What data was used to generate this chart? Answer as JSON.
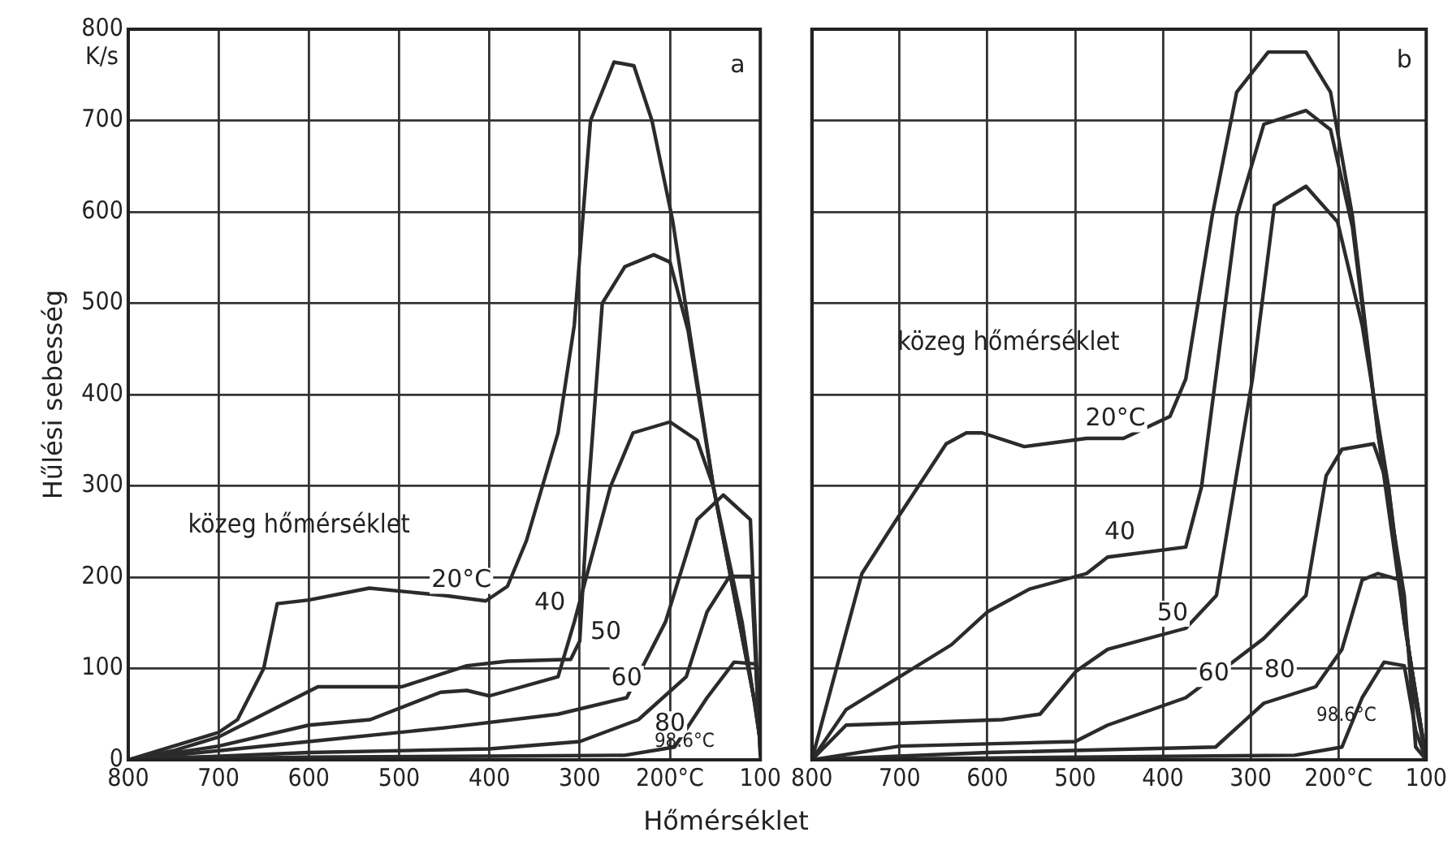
{
  "chart_data": [
    {
      "type": "line",
      "ylabel": "Hűlési sebesség",
      "xlabel": "Hőmérséklet",
      "xlim": [
        800,
        100
      ],
      "ylim": [
        0,
        800
      ],
      "xticks": [
        800,
        700,
        600,
        500,
        400,
        300,
        {
          "value": 200,
          "label": "200°C"
        },
        100
      ],
      "yticks": [
        0,
        100,
        200,
        300,
        400,
        500,
        600,
        700,
        800
      ],
      "grid": true,
      "legend": false,
      "marker": "none",
      "line_style": "solid",
      "series": [
        {
          "color": "#2b2b2b",
          "x": [
            800,
            750,
            700,
            679,
            650,
            635,
            600,
            533,
            450,
            404,
            380,
            359,
            324,
            306,
            288,
            262,
            240,
            220,
            197,
            152,
            106,
            100
          ],
          "values": [
            0,
            15,
            30,
            44,
            100,
            171,
            175,
            188,
            180,
            174,
            190,
            240,
            358,
            476,
            700,
            764,
            760,
            700,
            590,
            299,
            62,
            20
          ]
        },
        {
          "color": "#2b2b2b",
          "x": [
            800,
            750,
            700,
            650,
            590,
            497,
            425,
            380,
            310,
            300,
            290,
            275,
            250,
            218,
            200,
            180,
            152,
            106,
            100
          ],
          "values": [
            0,
            10,
            25,
            50,
            80,
            80,
            103,
            108,
            110,
            130,
            300,
            500,
            540,
            553,
            545,
            470,
            299,
            62,
            20
          ]
        },
        {
          "color": "#2b2b2b",
          "x": [
            800,
            700,
            600,
            532,
            454,
            425,
            400,
            324,
            306,
            266,
            241,
            200,
            170,
            152,
            120,
            100
          ],
          "values": [
            0,
            15,
            38,
            44,
            74,
            76,
            70,
            91,
            151,
            299,
            358,
            370,
            350,
            299,
            150,
            20
          ]
        },
        {
          "color": "#2b2b2b",
          "x": [
            800,
            700,
            600,
            450,
            324,
            248,
            205,
            170,
            141,
            111,
            100
          ],
          "values": [
            0,
            10,
            20,
            35,
            50,
            68,
            151,
            263,
            290,
            263,
            10
          ]
        },
        {
          "color": "#2b2b2b",
          "x": [
            800,
            600,
            400,
            300,
            235,
            182,
            159,
            134,
            110,
            100
          ],
          "values": [
            0,
            8,
            12,
            20,
            44,
            91,
            162,
            201,
            201,
            10
          ]
        },
        {
          "color": "#2b2b2b",
          "x": [
            800,
            600,
            400,
            250,
            195,
            159,
            129,
            105,
            100
          ],
          "values": [
            0,
            3,
            4,
            5,
            14,
            68,
            107,
            105,
            5
          ]
        }
      ],
      "annotations": [
        "K/s",
        {
          "text": "a",
          "x": 125,
          "y": 760
        },
        "közeg hőmérséklet",
        {
          "text": "20°C",
          "x": 431,
          "y": 196
        },
        {
          "text": "40",
          "x": 333,
          "y": 171
        },
        {
          "text": "50",
          "x": 271,
          "y": 139
        },
        {
          "text": "60",
          "x": 248,
          "y": 89
        },
        {
          "text": "80",
          "x": 200,
          "y": 39
        },
        "98.6°C"
      ]
    },
    {
      "type": "line",
      "xlim": [
        800,
        100
      ],
      "ylim": [
        0,
        800
      ],
      "xticks": [
        800,
        700,
        600,
        500,
        400,
        300,
        {
          "value": 200,
          "label": "200°C"
        },
        100
      ],
      "yticks": [
        0,
        100,
        200,
        300,
        400,
        500,
        600,
        700,
        800
      ],
      "grid": true,
      "legend": false,
      "marker": "none",
      "line_style": "solid",
      "tick_labels": "x",
      "series": [
        {
          "color": "#2b2b2b",
          "x": [
            800,
            743,
            707,
            647,
            624,
            606,
            558,
            487,
            445,
            392,
            374,
            344,
            316,
            280,
            237,
            209,
            184,
            155,
            125,
            112,
            100
          ],
          "values": [
            0,
            204,
            258,
            346,
            358,
            358,
            343,
            352,
            352,
            376,
            417,
            595,
            731,
            775,
            775,
            731,
            595,
            358,
            180,
            14,
            0
          ]
        },
        {
          "color": "#2b2b2b",
          "x": [
            800,
            761,
            700,
            641,
            600,
            552,
            487,
            463,
            374,
            356,
            316,
            285,
            237,
            209,
            184,
            155,
            125,
            100
          ],
          "values": [
            0,
            55,
            91,
            126,
            162,
            187,
            204,
            222,
            233,
            299,
            595,
            696,
            711,
            690,
            583,
            358,
            151,
            0
          ]
        },
        {
          "color": "#2b2b2b",
          "x": [
            800,
            761,
            583,
            540,
            499,
            463,
            374,
            339,
            298,
            273,
            237,
            201,
            173,
            143,
            120,
            100
          ],
          "values": [
            0,
            38,
            44,
            50,
            97,
            121,
            144,
            180,
            417,
            607,
            628,
            589,
            476,
            299,
            121,
            0
          ]
        },
        {
          "color": "#2b2b2b",
          "x": [
            800,
            700,
            500,
            463,
            374,
            285,
            237,
            214,
            196,
            160,
            143,
            125,
            100
          ],
          "values": [
            0,
            15,
            20,
            38,
            68,
            133,
            180,
            311,
            340,
            346,
            299,
            151,
            0
          ]
        },
        {
          "color": "#2b2b2b",
          "x": [
            800,
            600,
            340,
            285,
            226,
            196,
            173,
            155,
            130,
            112,
            100
          ],
          "values": [
            0,
            8,
            14,
            62,
            80,
            121,
            197,
            204,
            197,
            62,
            0
          ]
        },
        {
          "color": "#2b2b2b",
          "x": [
            800,
            500,
            250,
            196,
            173,
            148,
            125,
            112,
            100
          ],
          "values": [
            0,
            3,
            5,
            14,
            68,
            107,
            103,
            32,
            0
          ]
        }
      ],
      "annotations": [
        {
          "text": "b",
          "x": 125,
          "y": 765
        },
        "közeg hőmérséklet",
        {
          "text": "20°C",
          "x": 454,
          "y": 373
        },
        {
          "text": "40",
          "x": 449,
          "y": 249
        },
        {
          "text": "50",
          "x": 389,
          "y": 160
        },
        {
          "text": "60",
          "x": 342,
          "y": 94
        },
        {
          "text": "80",
          "x": 267,
          "y": 98
        },
        "98.6°C"
      ]
    }
  ]
}
